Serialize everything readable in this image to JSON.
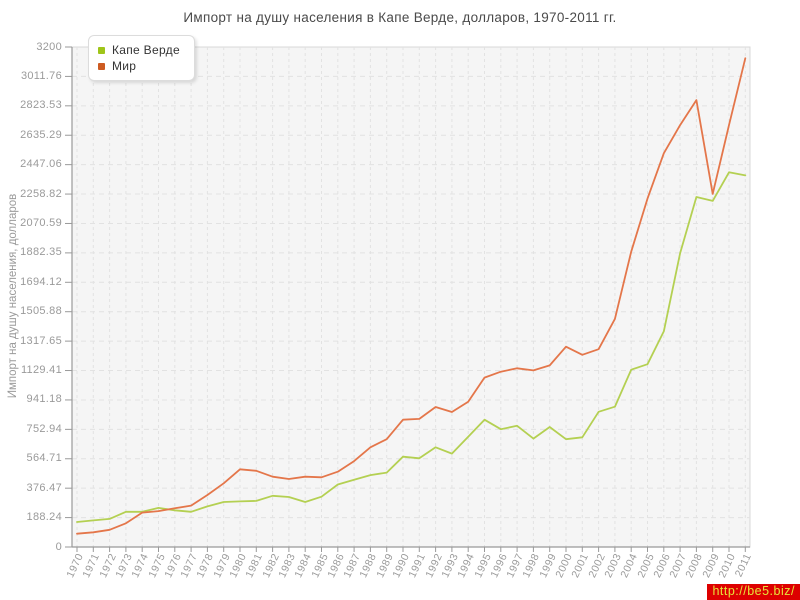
{
  "watermark": "http://be5.biz/",
  "chart_data": {
    "type": "line",
    "title": "Импорт на душу населения в Капе Верде, долларов, 1970-2011 гг.",
    "xlabel": "",
    "ylabel": "Импорт на душу населения, долларов",
    "ylim": [
      0,
      3200
    ],
    "grid": true,
    "legend_position": "top-left",
    "yticks": [
      0,
      188.24,
      376.47,
      564.71,
      752.94,
      941.18,
      1129.41,
      1317.65,
      1505.88,
      1694.12,
      1882.35,
      2070.59,
      2258.82,
      2447.06,
      2635.29,
      2823.53,
      3011.76,
      3200
    ],
    "ytick_labels": [
      "0",
      "188.24",
      "376.47",
      "564.71",
      "752.94",
      "941.18",
      "1129.41",
      "1317.65",
      "1505.88",
      "1694.12",
      "1882.35",
      "2070.59",
      "2258.82",
      "2447.06",
      "2635.29",
      "2823.53",
      "3011.76",
      "3200"
    ],
    "x": [
      "1970",
      "1971",
      "1972",
      "1973",
      "1974",
      "1975",
      "1976",
      "1977",
      "1978",
      "1979",
      "1980",
      "1981",
      "1982",
      "1983",
      "1984",
      "1985",
      "1986",
      "1987",
      "1988",
      "1989",
      "1990",
      "1991",
      "1992",
      "1993",
      "1994",
      "1995",
      "1996",
      "1997",
      "1998",
      "1999",
      "2000",
      "2001",
      "2002",
      "2003",
      "2004",
      "2005",
      "2006",
      "2007",
      "2008",
      "2009",
      "2010",
      "2011"
    ],
    "series": [
      {
        "name": "Капе Верде",
        "color": "#9fc519",
        "line_color": "#b4d052",
        "values": [
          160,
          170,
          180,
          225,
          225,
          250,
          235,
          225,
          260,
          288,
          292,
          295,
          328,
          320,
          288,
          322,
          400,
          430,
          460,
          476,
          578,
          568,
          638,
          598,
          705,
          815,
          754,
          776,
          694,
          768,
          690,
          702,
          865,
          898,
          1135,
          1170,
          1380,
          1880,
          2240,
          2215,
          2398,
          2378
        ]
      },
      {
        "name": "Мир",
        "color": "#cd5b22",
        "line_color": "#e4764a",
        "values": [
          85,
          94,
          110,
          152,
          220,
          230,
          248,
          265,
          333,
          408,
          497,
          488,
          450,
          435,
          450,
          446,
          482,
          550,
          638,
          690,
          815,
          820,
          896,
          864,
          930,
          1084,
          1122,
          1144,
          1130,
          1162,
          1282,
          1230,
          1266,
          1460,
          1890,
          2230,
          2520,
          2700,
          2860,
          2260,
          2700,
          3128
        ]
      }
    ],
    "plot_style": {
      "plot_bg": "#f5f5f5",
      "grid_color": "#e2e2e2",
      "axis_color": "#999999",
      "border_color": "#d8d8d8"
    }
  }
}
